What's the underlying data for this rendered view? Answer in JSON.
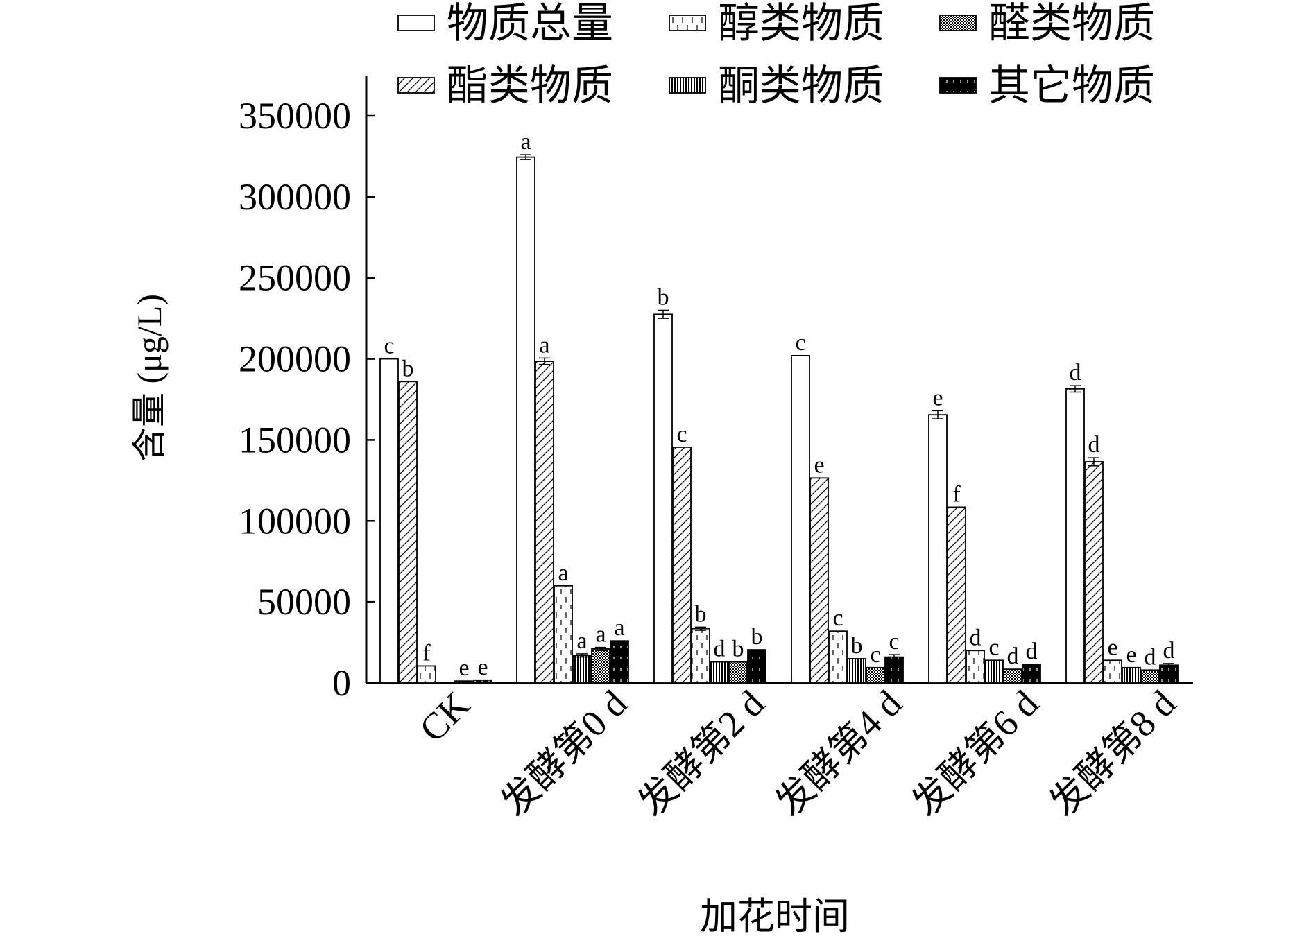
{
  "chart_data": {
    "type": "bar",
    "title": "",
    "xlabel": "加花时间",
    "ylabel": "含量 (μg/L)",
    "ylim": [
      0,
      350000
    ],
    "yticks": [
      "0",
      "50000",
      "100000",
      "150000",
      "200000",
      "250000",
      "300000",
      "350000"
    ],
    "categories": [
      "CK",
      "发酵第0 d",
      "发酵第2 d",
      "发酵第4 d",
      "发酵第6 d",
      "发酵第8 d"
    ],
    "legend_position": "top",
    "series": [
      {
        "name": "物质总量",
        "pattern": "empty",
        "values": [
          200000,
          324500,
          227500,
          202000,
          165500,
          181500
        ],
        "errors": [
          0,
          1500,
          2500,
          0,
          2500,
          2000
        ],
        "letters": [
          "c",
          "a",
          "b",
          "c",
          "e",
          "d"
        ]
      },
      {
        "name": "酯类物质",
        "pattern": "diagonal",
        "values": [
          186000,
          198500,
          145500,
          126500,
          108500,
          136500
        ],
        "errors": [
          0,
          2000,
          0,
          0,
          0,
          2500
        ],
        "letters": [
          "b",
          "a",
          "c",
          "e",
          "f",
          "d"
        ]
      },
      {
        "name": "醇类物质",
        "pattern": "dashed-vertical",
        "values": [
          10500,
          60000,
          33500,
          32000,
          20000,
          14000
        ],
        "errors": [
          0,
          0,
          1000,
          0,
          0,
          0
        ],
        "letters": [
          "f",
          "a",
          "b",
          "c",
          "d",
          "e"
        ]
      },
      {
        "name": "酮类物质",
        "pattern": "vertical-stripes",
        "values": [
          0,
          17000,
          13000,
          15000,
          14000,
          9500
        ],
        "errors": [
          0,
          1000,
          0,
          0,
          0,
          0
        ],
        "letters": [
          "",
          "a",
          "d",
          "b",
          "c",
          "e"
        ]
      },
      {
        "name": "醛类物质",
        "pattern": "crosshatch",
        "values": [
          1200,
          21000,
          13000,
          9500,
          8500,
          8000
        ],
        "errors": [
          0,
          1000,
          0,
          0,
          0,
          0
        ],
        "letters": [
          "e",
          "a",
          "b",
          "c",
          "d",
          "d"
        ]
      },
      {
        "name": "其它物质",
        "pattern": "black-ticks",
        "values": [
          1800,
          26000,
          20500,
          16000,
          11500,
          11000
        ],
        "errors": [
          0,
          0,
          0,
          1500,
          0,
          1000
        ],
        "letters": [
          "e",
          "a",
          "b",
          "c",
          "d",
          "d"
        ]
      }
    ],
    "legend_order": [
      "物质总量",
      "醇类物质",
      "醛类物质",
      "酯类物质",
      "酮类物质",
      "其它物质"
    ]
  }
}
